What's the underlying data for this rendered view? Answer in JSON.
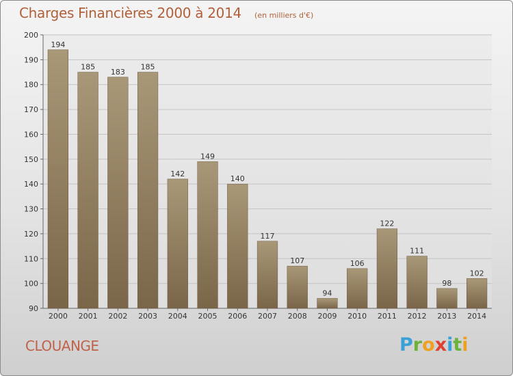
{
  "title": "Charges Financières 2000 à 2014",
  "subtitle": "(en milliers d'€)",
  "city": "CLOUANGE",
  "brand": {
    "letters": [
      "P",
      "r",
      "o",
      "x",
      "i",
      "t",
      "i"
    ],
    "colors": [
      "#3aa0d8",
      "#6bb33a",
      "#f0a020",
      "#e04030",
      "#3aa0d8",
      "#6bb33a",
      "#f0a020"
    ]
  },
  "colors": {
    "bar_top": "#a89878",
    "bar_bottom": "#7a6548",
    "title": "#b0603a"
  },
  "chart_data": {
    "type": "bar",
    "title": "Charges Financières 2000 à 2014",
    "subtitle": "(en milliers d'€)",
    "xlabel": "",
    "ylabel": "",
    "categories": [
      "2000",
      "2001",
      "2002",
      "2003",
      "2004",
      "2005",
      "2006",
      "2007",
      "2008",
      "2009",
      "2010",
      "2011",
      "2012",
      "2013",
      "2014"
    ],
    "values": [
      194,
      185,
      183,
      185,
      142,
      149,
      140,
      117,
      107,
      94,
      106,
      122,
      111,
      98,
      102
    ],
    "ylim": [
      90,
      200
    ],
    "yticks": [
      90,
      100,
      110,
      120,
      130,
      140,
      150,
      160,
      170,
      180,
      190,
      200
    ],
    "grid": true,
    "data_labels": true
  }
}
